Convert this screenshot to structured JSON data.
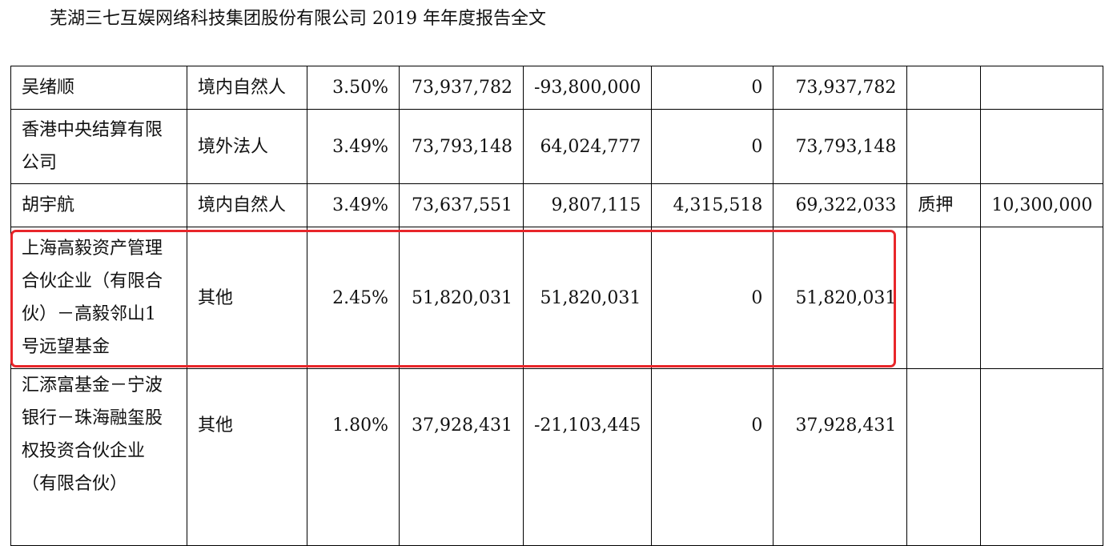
{
  "header": {
    "title": "芜湖三七互娱网络科技集团股份有限公司 2019 年年度报告全文"
  },
  "table": {
    "rows": [
      {
        "name": "吴绪顺",
        "type": "境内自然人",
        "ratio": "3.50%",
        "shares": "73,937,782",
        "change": "-93,800,000",
        "restricted": "0",
        "unrestricted": "73,937,782",
        "pledge_status": "",
        "pledge_amount": ""
      },
      {
        "name": "香港中央结算有限公司",
        "type": "境外法人",
        "ratio": "3.49%",
        "shares": "73,793,148",
        "change": "64,024,777",
        "restricted": "0",
        "unrestricted": "73,793,148",
        "pledge_status": "",
        "pledge_amount": ""
      },
      {
        "name": "胡宇航",
        "type": "境内自然人",
        "ratio": "3.49%",
        "shares": "73,637,551",
        "change": "9,807,115",
        "restricted": "4,315,518",
        "unrestricted": "69,322,033",
        "pledge_status": "质押",
        "pledge_amount": "10,300,000"
      },
      {
        "name": "上海高毅资产管理合伙企业（有限合伙）－高毅邻山1 号远望基金",
        "type": "其他",
        "ratio": "2.45%",
        "shares": "51,820,031",
        "change": "51,820,031",
        "restricted": "0",
        "unrestricted": "51,820,031",
        "pledge_status": "",
        "pledge_amount": ""
      },
      {
        "name": "汇添富基金－宁波银行－珠海融玺股权投资合伙企业（有限合伙）",
        "type": "其他",
        "ratio": "1.80%",
        "shares": "37,928,431",
        "change": "-21,103,445",
        "restricted": "0",
        "unrestricted": "37,928,431",
        "pledge_status": "",
        "pledge_amount": ""
      }
    ]
  },
  "highlight": {
    "color": "#e8262a",
    "row_index": 3
  }
}
